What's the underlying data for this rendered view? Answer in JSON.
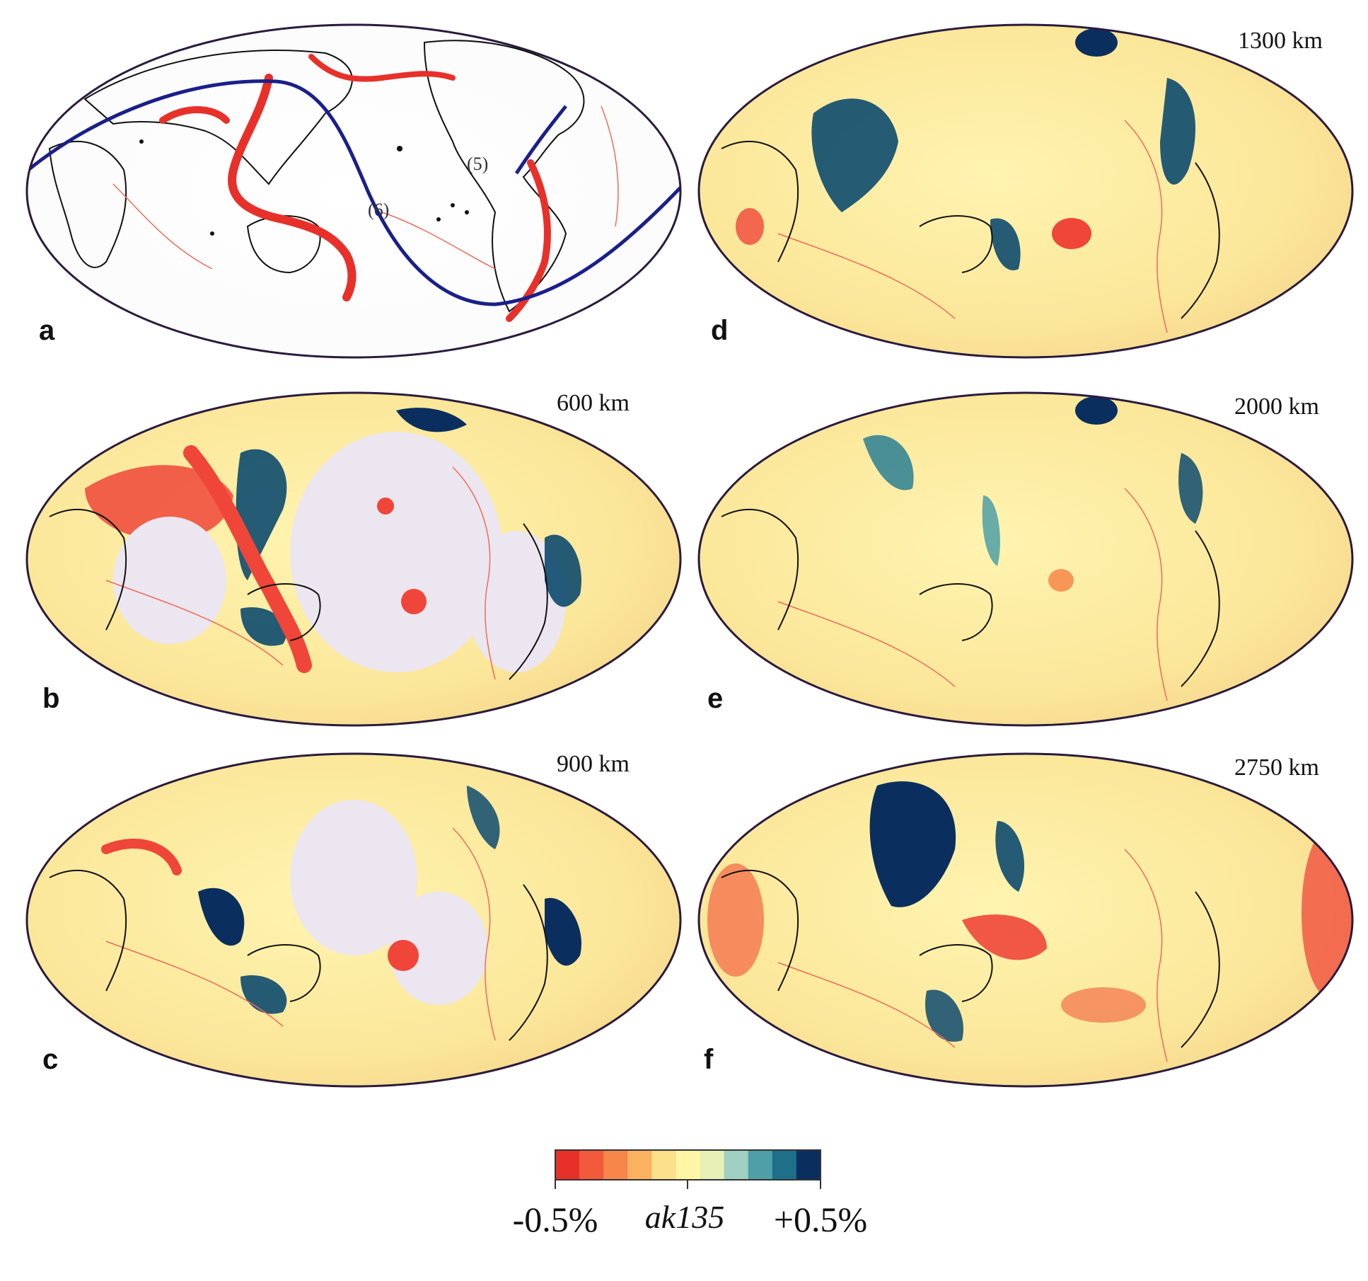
{
  "colors": {
    "slow": "#f0463a",
    "neutral": "#fff6a6",
    "fast": "#0a2f5e",
    "plate_boundary": "#f06a5a",
    "coastline": "#111111",
    "map_edge": "#2a1b3d",
    "great_circle": "#1a1f8a"
  },
  "panels": [
    {
      "id": "a",
      "letter": "a",
      "depth": "",
      "annotations": [
        "(6)",
        "(5)"
      ]
    },
    {
      "id": "b",
      "letter": "b",
      "depth": "600 km"
    },
    {
      "id": "c",
      "letter": "c",
      "depth": "900 km"
    },
    {
      "id": "d",
      "letter": "d",
      "depth": "1300 km"
    },
    {
      "id": "e",
      "letter": "e",
      "depth": "2000 km"
    },
    {
      "id": "f",
      "letter": "f",
      "depth": "2750 km"
    }
  ],
  "scale": {
    "min_label": "-0.5%",
    "ref_label": "ak135",
    "max_label": "+0.5%",
    "colors": [
      "#e8302a",
      "#f25a3c",
      "#f7864a",
      "#fab261",
      "#fde08a",
      "#fff6a6",
      "#e9f0b6",
      "#9fd0c2",
      "#4e9fa6",
      "#1f6f8a",
      "#0a2f5e"
    ]
  }
}
